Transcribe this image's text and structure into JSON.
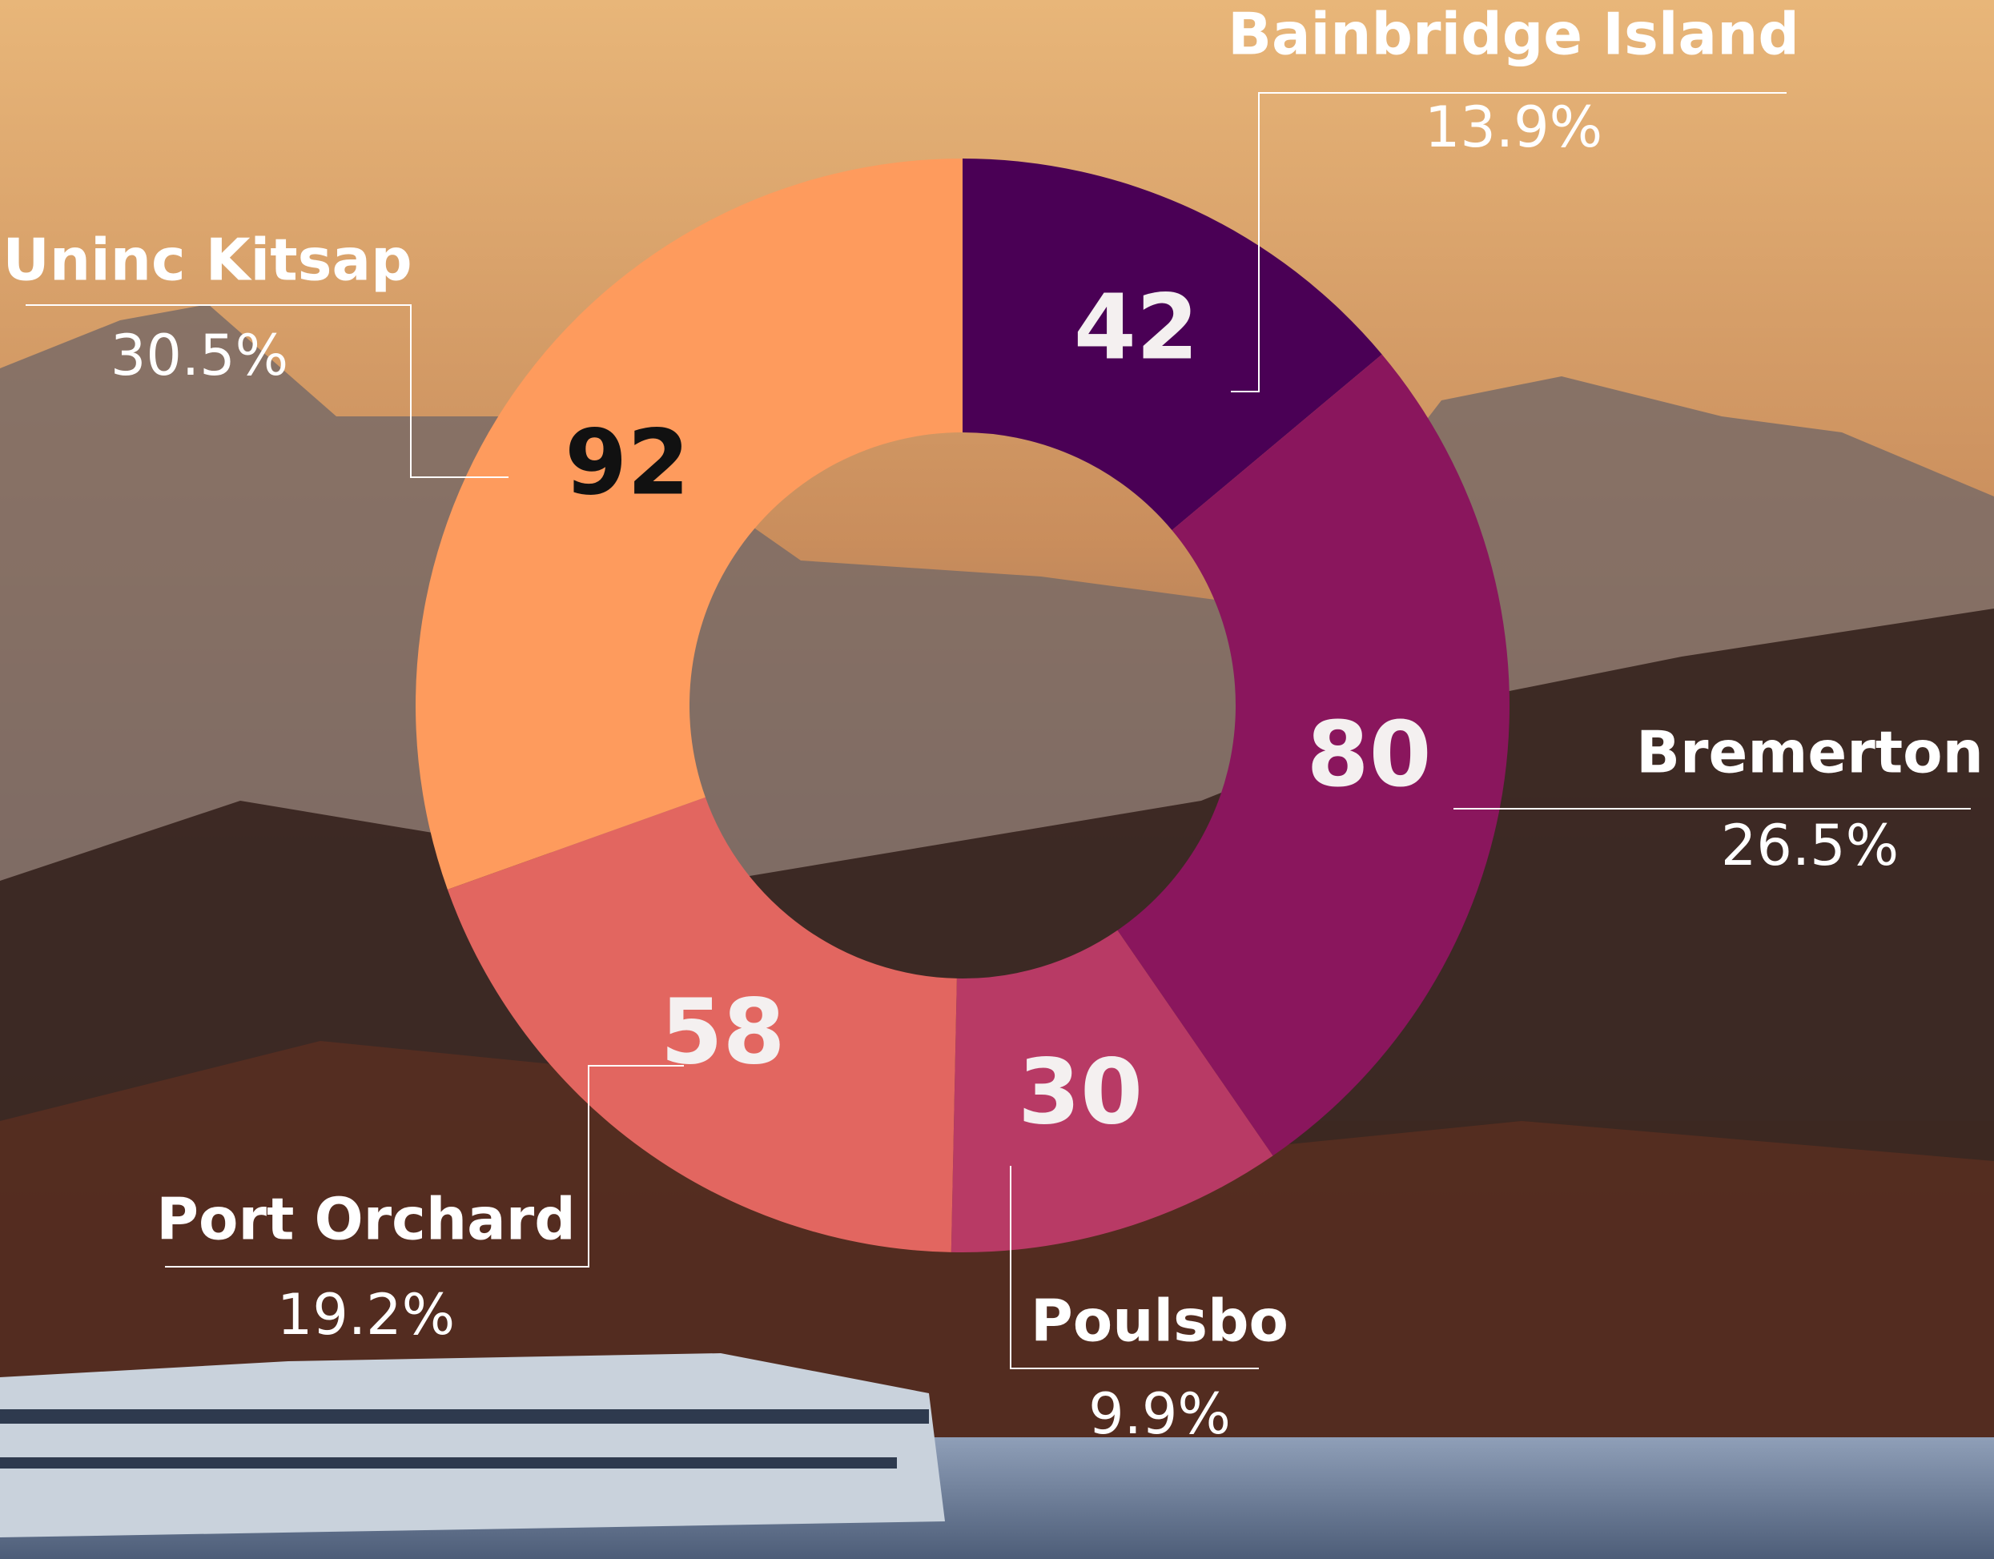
{
  "chart_data": {
    "type": "donut",
    "categories": [
      "Bainbridge Island",
      "Bremerton",
      "Poulsbo",
      "Port Orchard",
      "Uninc Kitsap"
    ],
    "values": [
      42,
      80,
      30,
      58,
      92
    ],
    "percent_labels": [
      "13.9%",
      "26.5%",
      "9.9%",
      "19.2%",
      "30.5%"
    ],
    "colors": [
      "#4a0055",
      "#8a165d",
      "#b83a65",
      "#e26660",
      "#fe9b5d"
    ],
    "value_label_colors": [
      "#f4f0f0",
      "#f4f0f0",
      "#f4f0f0",
      "#f4f0f0",
      "#111111"
    ]
  }
}
